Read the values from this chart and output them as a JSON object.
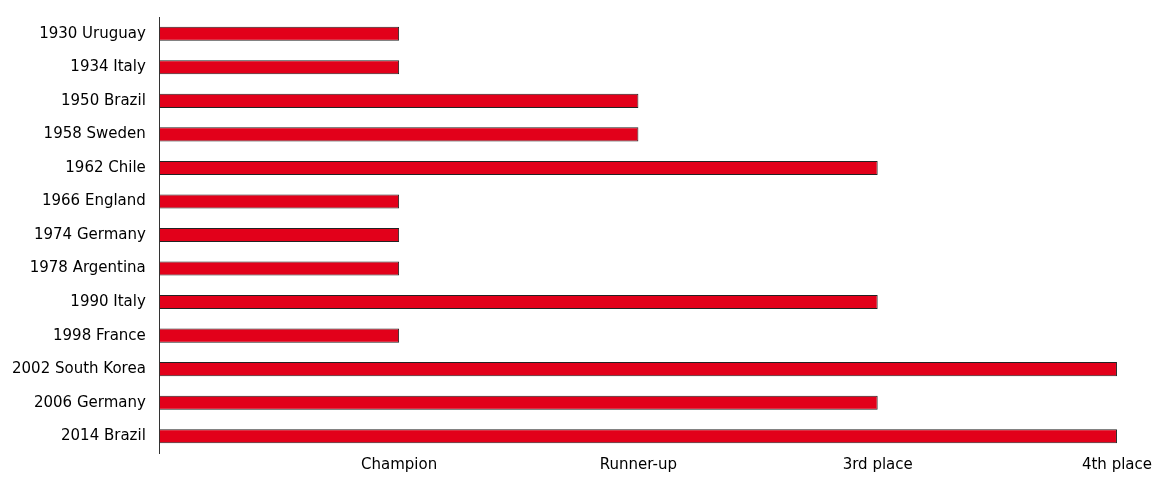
{
  "chart_data": {
    "type": "bar",
    "orientation": "horizontal",
    "categories": [
      "1930 Uruguay",
      "1934 Italy",
      "1950 Brazil",
      "1958 Sweden",
      "1962 Chile",
      "1966 England",
      "1974 Germany",
      "1978 Argentina",
      "1990 Italy",
      "1998 France",
      "2002 South Korea",
      "2006 Germany",
      "2014 Brazil"
    ],
    "values": [
      1,
      1,
      2,
      2,
      3,
      1,
      1,
      1,
      3,
      1,
      4,
      3,
      4
    ],
    "color": "#e2001a",
    "xlim": [
      0,
      4
    ],
    "xticks": [
      {
        "value": 1,
        "label": "Champion"
      },
      {
        "value": 2,
        "label": "Runner-up"
      },
      {
        "value": 3,
        "label": "3rd place"
      },
      {
        "value": 4,
        "label": "4th place"
      }
    ],
    "grid": false,
    "legend": false
  }
}
